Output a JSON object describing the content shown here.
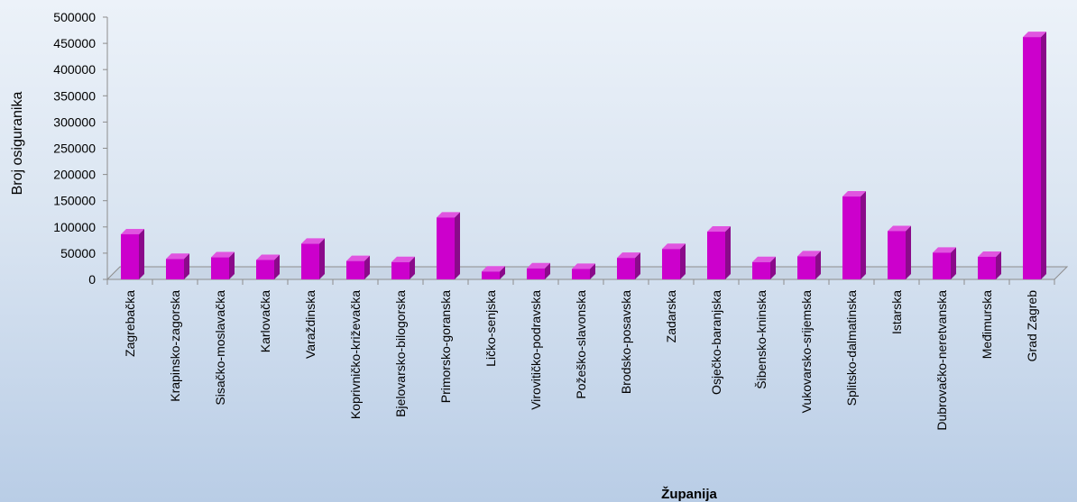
{
  "chart_data": {
    "type": "bar",
    "title": "",
    "xlabel": "Županija",
    "ylabel": "Broj osiguranika",
    "ylim": [
      0,
      500000
    ],
    "ytick_step": 50000,
    "yticks": [
      "0",
      "50000",
      "100000",
      "150000",
      "200000",
      "250000",
      "300000",
      "350000",
      "400000",
      "450000",
      "500000"
    ],
    "grid": false,
    "legend": "none",
    "bar_color": "#cc00cc",
    "bar_side_color": "#8a0a8a",
    "bar_top_color": "#e055e0",
    "categories": [
      "Zagrebačka",
      "Krapinsko-zagorska",
      "Sisačko-moslavačka",
      "Karlovačka",
      "Varaždinska",
      "Koprivničko-križevačka",
      "Bjelovarsko-bilogorska",
      "Primorsko-goranska",
      "Ličko-senjska",
      "Virovitičko-podravska",
      "Požeško-slavonska",
      "Brodsko-posavska",
      "Zadarska",
      "Osječko-baranjska",
      "Šibensko-kninska",
      "Vukovarsko-srijemska",
      "Splitsko-dalmatinska",
      "Istarska",
      "Dubrovačko-neretvanska",
      "Međimurska",
      "Grad Zagreb"
    ],
    "values": [
      86000,
      39000,
      42000,
      37000,
      68000,
      35000,
      33000,
      118000,
      15000,
      21000,
      20000,
      41000,
      58000,
      91000,
      33000,
      44000,
      158000,
      92000,
      51000,
      43000,
      462000
    ]
  }
}
